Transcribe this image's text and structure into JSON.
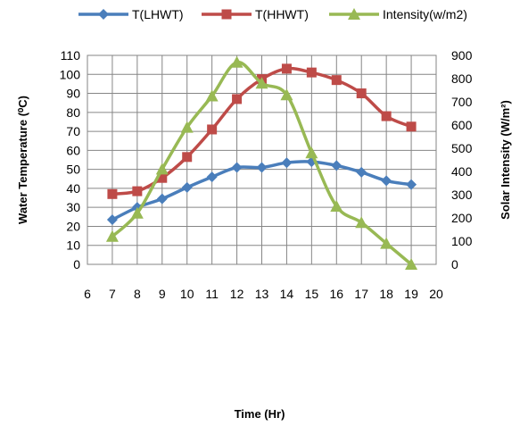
{
  "chart_data": {
    "type": "line",
    "xlabel": "Time (Hr)",
    "ylabel": "Water Temperature (⁰C)",
    "y2label": "Solar Intensity (W/m²)",
    "xlim": [
      6,
      20
    ],
    "ylim": [
      0,
      110
    ],
    "y2lim": [
      0,
      900
    ],
    "x_ticks": [
      6,
      7,
      8,
      9,
      10,
      11,
      12,
      13,
      14,
      15,
      16,
      17,
      18,
      19,
      20
    ],
    "y_ticks": [
      0,
      10,
      20,
      30,
      40,
      50,
      60,
      70,
      80,
      90,
      100,
      110
    ],
    "y2_ticks": [
      0,
      100,
      200,
      300,
      400,
      500,
      600,
      700,
      800,
      900
    ],
    "grid": true,
    "legend_position": "top",
    "x": [
      7,
      8,
      9,
      10,
      11,
      12,
      13,
      14,
      15,
      16,
      17,
      18,
      19
    ],
    "series": [
      {
        "name": "T(LHWT)",
        "color": "#4a7ebb",
        "marker": "diamond",
        "axis": "left",
        "values": [
          23.5,
          30,
          34.5,
          40.5,
          46,
          51,
          51,
          53.5,
          54,
          52,
          48.5,
          44,
          42
        ]
      },
      {
        "name": "T(HHWT)",
        "color": "#be4b48",
        "marker": "square",
        "axis": "left",
        "values": [
          37,
          38.5,
          45.5,
          56.5,
          71,
          87,
          97.5,
          103,
          101,
          97,
          90,
          78,
          72.5
        ]
      },
      {
        "name": "Intensity(w/m2)",
        "color": "#98b954",
        "marker": "triangle",
        "axis": "right",
        "values": [
          120,
          220,
          410,
          590,
          725,
          870,
          780,
          730,
          480,
          250,
          180,
          90,
          0
        ]
      }
    ]
  }
}
